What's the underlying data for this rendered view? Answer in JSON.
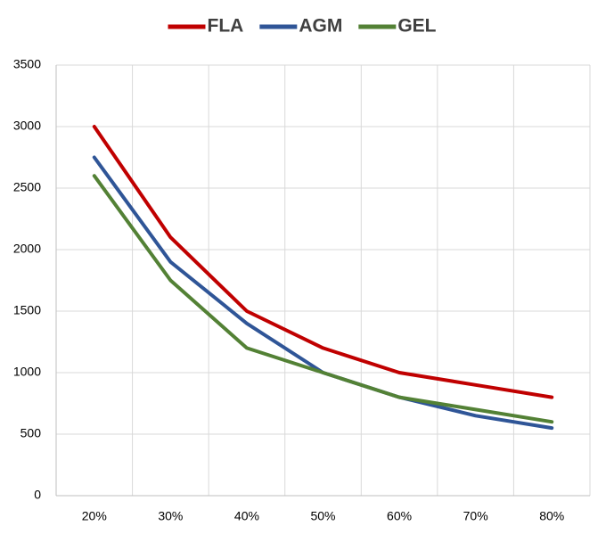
{
  "chart_data": {
    "type": "line",
    "categories": [
      "20%",
      "30%",
      "40%",
      "50%",
      "60%",
      "70%",
      "80%"
    ],
    "series": [
      {
        "name": "FLA",
        "color": "#c00000",
        "values": [
          3000,
          2100,
          1500,
          1200,
          1000,
          900,
          800
        ]
      },
      {
        "name": "AGM",
        "color": "#2f5597",
        "values": [
          2750,
          1900,
          1400,
          1000,
          800,
          650,
          550
        ]
      },
      {
        "name": "GEL",
        "color": "#538135",
        "values": [
          2600,
          1750,
          1200,
          1000,
          800,
          700,
          600
        ]
      }
    ],
    "ylim": [
      0,
      3500
    ],
    "yticks": [
      0,
      500,
      1000,
      1500,
      2000,
      2500,
      3000,
      3500
    ],
    "grid": true,
    "legend": "top"
  }
}
